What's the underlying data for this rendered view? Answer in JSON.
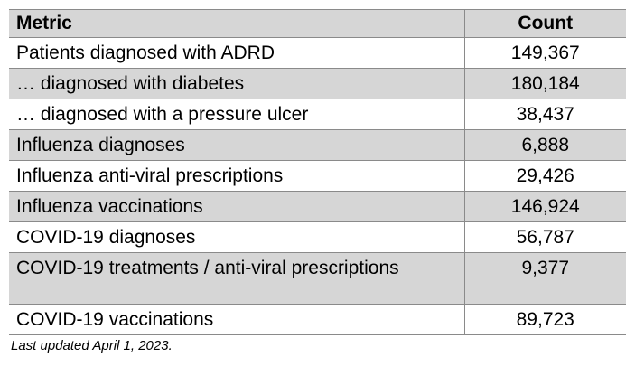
{
  "table": {
    "headers": {
      "metric": "Metric",
      "count": "Count"
    },
    "rows": [
      {
        "metric": "Patients diagnosed with ADRD",
        "count": "149,367"
      },
      {
        "metric": "… diagnosed with diabetes",
        "count": "180,184"
      },
      {
        "metric": "… diagnosed with a pressure ulcer",
        "count": "38,437"
      },
      {
        "metric": "Influenza diagnoses",
        "count": "6,888"
      },
      {
        "metric": "Influenza anti-viral prescriptions",
        "count": "29,426"
      },
      {
        "metric": "Influenza vaccinations",
        "count": "146,924"
      },
      {
        "metric": "COVID-19 diagnoses",
        "count": "56,787"
      },
      {
        "metric": "COVID-19 treatments / anti-viral prescriptions",
        "count": "9,377"
      },
      {
        "metric": "COVID-19 vaccinations",
        "count": "89,723"
      }
    ]
  },
  "footnote": "Last updated April 1, 2023.",
  "colors": {
    "shaded_row": "#d6d6d6",
    "rule": "#8a8a8a"
  }
}
